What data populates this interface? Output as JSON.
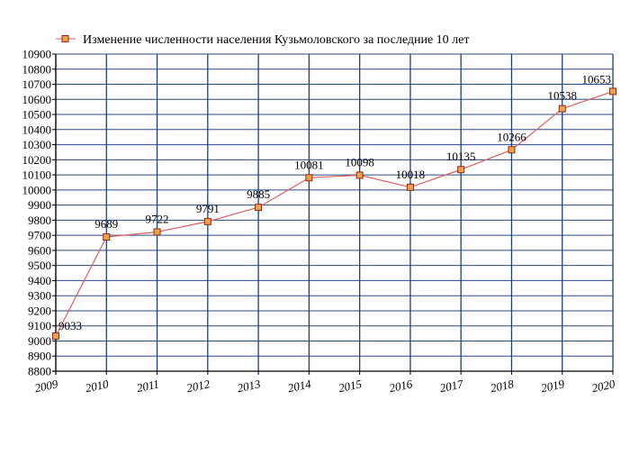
{
  "chart_data": {
    "type": "line",
    "title": "Изменение численности населения Кузьмоловского за последние 10 лет",
    "legend_position": "top",
    "grid": true,
    "x": [
      "2009",
      "2010",
      "2011",
      "2012",
      "2013",
      "2014",
      "2015",
      "2016",
      "2017",
      "2018",
      "2019",
      "2020"
    ],
    "series": [
      {
        "name": "Изменение численности населения Кузьмоловского за последние 10 лет",
        "values": [
          9033,
          9689,
          9722,
          9791,
          9885,
          10081,
          10098,
          10018,
          10135,
          10266,
          10538,
          10653
        ],
        "labels": [
          "9033",
          "9689",
          "9722",
          "9791",
          "9885",
          "10081",
          "10098",
          "10018",
          "10135",
          "10266",
          "10538",
          "10653"
        ]
      }
    ],
    "ylim": [
      8800,
      10900
    ],
    "yticks": [
      "8800",
      "8900",
      "9000",
      "9100",
      "9200",
      "9300",
      "9400",
      "9500",
      "9600",
      "9700",
      "9800",
      "9900",
      "10000",
      "10100",
      "10200",
      "10300",
      "10400",
      "10500",
      "10600",
      "10700",
      "10800",
      "10900"
    ],
    "colors": {
      "line": "#e06060",
      "marker_fill": "#f4a04a",
      "marker_stroke": "#8b2a1a",
      "grid_v": "#1f3f7a",
      "grid_h": "#2a4a85",
      "axis": "#000000"
    }
  }
}
